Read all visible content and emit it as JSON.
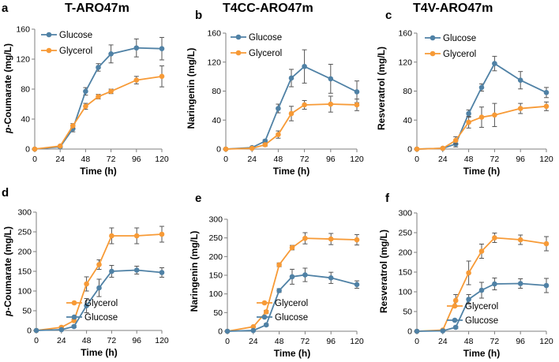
{
  "colors": {
    "glucose": "#4f81a5",
    "glycerol": "#f79a36"
  },
  "panels": [
    {
      "letter": "a",
      "title": "T-ARO47m",
      "ylabel_prefix": "p",
      "ylabel_rest": "-Coumarate (mg/L)"
    },
    {
      "letter": "b",
      "title": "T4CC-ARO47m",
      "ylabel_prefix": "",
      "ylabel_rest": "Naringenin (mg/L)"
    },
    {
      "letter": "c",
      "title": "T4V-ARO47m",
      "ylabel_prefix": "",
      "ylabel_rest": "Resveratrol (mg/L)"
    },
    {
      "letter": "d",
      "title": "",
      "ylabel_prefix": "p",
      "ylabel_rest": "-Coumarate (mg/L)"
    },
    {
      "letter": "e",
      "title": "",
      "ylabel_prefix": "",
      "ylabel_rest": "Naringenin (mg/L)"
    },
    {
      "letter": "f",
      "title": "",
      "ylabel_prefix": "",
      "ylabel_rest": "Resveratrol (mg/L)"
    }
  ],
  "chart_data": [
    {
      "type": "line",
      "panel": "a",
      "title": "T-ARO47m",
      "xlabel": "Time (h)",
      "ylabel": "p-Coumarate (mg/L)",
      "x": [
        0,
        24,
        36,
        48,
        60,
        72,
        96,
        120
      ],
      "xticks": [
        0,
        24,
        48,
        72,
        96,
        120
      ],
      "xlim": [
        0,
        120
      ],
      "yticks": [
        0,
        40,
        80,
        120,
        160
      ],
      "ylim": [
        0,
        160
      ],
      "legend": [
        "Glucose",
        "Glycerol"
      ],
      "series": [
        {
          "name": "Glucose",
          "color_key": "glucose",
          "values": [
            0,
            3,
            27,
            77,
            109,
            127,
            135,
            134
          ],
          "errors": [
            0,
            1,
            4,
            5,
            5,
            12,
            12,
            15
          ]
        },
        {
          "name": "Glycerol",
          "color_key": "glycerol",
          "values": [
            0,
            4,
            31,
            57,
            70,
            77,
            92,
            97
          ],
          "errors": [
            0,
            1,
            3,
            4,
            3,
            3,
            5,
            14
          ]
        }
      ]
    },
    {
      "type": "line",
      "panel": "b",
      "title": "T4CC-ARO47m",
      "xlabel": "Time (h)",
      "ylabel": "Naringenin (mg/L)",
      "x": [
        0,
        24,
        36,
        48,
        60,
        72,
        96,
        120
      ],
      "xticks": [
        0,
        24,
        48,
        72,
        96,
        120
      ],
      "xlim": [
        0,
        120
      ],
      "yticks": [
        0,
        40,
        80,
        120,
        160
      ],
      "ylim": [
        0,
        160
      ],
      "legend": [
        "Glucose",
        "Glycerol"
      ],
      "series": [
        {
          "name": "Glucose",
          "color_key": "glucose",
          "values": [
            0,
            2,
            11,
            56,
            98,
            114,
            97,
            79
          ],
          "errors": [
            0,
            1,
            2,
            6,
            12,
            23,
            20,
            15
          ]
        },
        {
          "name": "Glycerol",
          "color_key": "glycerol",
          "values": [
            0,
            1,
            6,
            20,
            49,
            61,
            62,
            61
          ],
          "errors": [
            0,
            1,
            2,
            5,
            10,
            6,
            11,
            8
          ]
        }
      ]
    },
    {
      "type": "line",
      "panel": "c",
      "title": "T4V-ARO47m",
      "xlabel": "Time (h)",
      "ylabel": "Resveratrol (mg/L)",
      "x": [
        0,
        24,
        36,
        48,
        60,
        72,
        96,
        120
      ],
      "xticks": [
        0,
        24,
        48,
        72,
        96,
        120
      ],
      "xlim": [
        0,
        120
      ],
      "yticks": [
        0,
        40,
        80,
        120,
        160
      ],
      "ylim": [
        0,
        160
      ],
      "legend": [
        "Glucose",
        "Glycerol"
      ],
      "series": [
        {
          "name": "Glucose",
          "color_key": "glucose",
          "values": [
            0,
            1,
            7,
            49,
            85,
            118,
            95,
            78
          ],
          "errors": [
            0,
            1,
            4,
            5,
            5,
            10,
            12,
            7
          ]
        },
        {
          "name": "Glycerol",
          "color_key": "glycerol",
          "values": [
            0,
            1,
            12,
            37,
            44,
            47,
            56,
            59
          ],
          "errors": [
            0,
            1,
            5,
            8,
            14,
            16,
            7,
            6
          ]
        }
      ]
    },
    {
      "type": "line",
      "panel": "d",
      "title": "",
      "xlabel": "Time (h)",
      "ylabel": "p-Coumarate (mg/L)",
      "x": [
        0,
        24,
        36,
        48,
        60,
        72,
        96,
        120
      ],
      "xticks": [
        0,
        24,
        48,
        72,
        96,
        120
      ],
      "xlim": [
        0,
        120
      ],
      "yticks": [
        0,
        50,
        100,
        150,
        200,
        250,
        300
      ],
      "ylim": [
        0,
        300
      ],
      "legend": [
        "Glycerol",
        "Glucose"
      ],
      "series": [
        {
          "name": "Glycerol",
          "color_key": "glycerol",
          "values": [
            0,
            8,
            25,
            118,
            167,
            240,
            240,
            244
          ],
          "errors": [
            0,
            2,
            4,
            18,
            12,
            20,
            20,
            20
          ]
        },
        {
          "name": "Glucose",
          "color_key": "glucose",
          "values": [
            0,
            2,
            10,
            63,
            108,
            150,
            153,
            147
          ],
          "errors": [
            0,
            1,
            3,
            18,
            22,
            15,
            10,
            12
          ]
        }
      ]
    },
    {
      "type": "line",
      "panel": "e",
      "title": "",
      "xlabel": "Time (h)",
      "ylabel": "Naringenin (mg/L)",
      "x": [
        0,
        24,
        36,
        48,
        60,
        72,
        96,
        120
      ],
      "xticks": [
        0,
        24,
        48,
        72,
        96,
        120
      ],
      "xlim": [
        0,
        120
      ],
      "yticks": [
        0,
        50,
        100,
        150,
        200,
        250,
        300
      ],
      "ylim": [
        0,
        300
      ],
      "legend": [
        "Glycerol",
        "Glucose"
      ],
      "series": [
        {
          "name": "Glycerol",
          "color_key": "glycerol",
          "values": [
            0,
            12,
            52,
            178,
            224,
            249,
            247,
            245
          ],
          "errors": [
            0,
            2,
            4,
            5,
            6,
            15,
            15,
            14
          ]
        },
        {
          "name": "Glucose",
          "color_key": "glucose",
          "values": [
            0,
            2,
            17,
            109,
            146,
            151,
            143,
            125
          ],
          "errors": [
            0,
            1,
            3,
            5,
            20,
            18,
            15,
            10
          ]
        }
      ]
    },
    {
      "type": "line",
      "panel": "f",
      "title": "",
      "xlabel": "Time (h)",
      "ylabel": "Resveratrol (mg/L)",
      "x": [
        0,
        24,
        36,
        48,
        60,
        72,
        96,
        120
      ],
      "xticks": [
        0,
        24,
        48,
        72,
        96,
        120
      ],
      "xlim": [
        0,
        120
      ],
      "yticks": [
        0,
        50,
        100,
        150,
        200,
        250,
        300
      ],
      "ylim": [
        0,
        300
      ],
      "legend": [
        "Glycerol",
        "Glucose"
      ],
      "series": [
        {
          "name": "Glycerol",
          "color_key": "glycerol",
          "values": [
            0,
            3,
            78,
            148,
            203,
            237,
            232,
            222
          ],
          "errors": [
            0,
            2,
            15,
            30,
            18,
            12,
            12,
            18
          ]
        },
        {
          "name": "Glucose",
          "color_key": "glucose",
          "values": [
            0,
            1,
            10,
            81,
            104,
            120,
            121,
            116
          ],
          "errors": [
            0,
            1,
            3,
            12,
            20,
            15,
            12,
            18
          ]
        }
      ]
    }
  ]
}
